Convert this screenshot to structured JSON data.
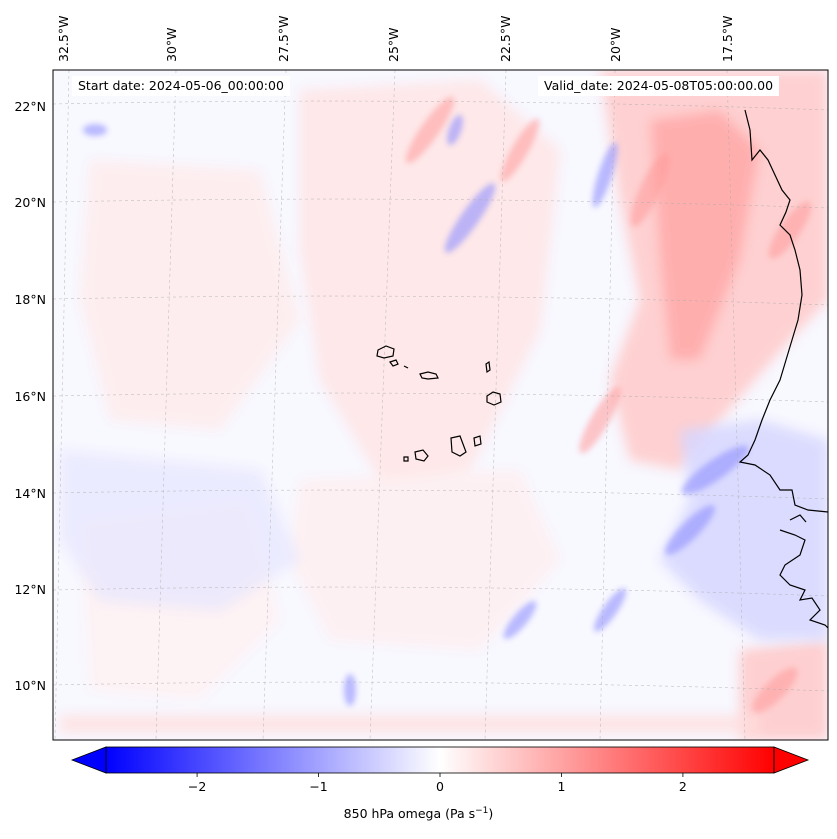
{
  "map": {
    "start_date_label": "Start date: 2024-05-06_00:00:00",
    "valid_date_label": "Valid_date: 2024-05-08T05:00:00.00",
    "variable": "850 hPa omega",
    "units_base": "Pa s",
    "units_exp": "−1",
    "lon_labels": [
      "32.5°W",
      "30°W",
      "27.5°W",
      "25°W",
      "22.5°W",
      "20°W",
      "17.5°W"
    ],
    "lat_labels": [
      "22°N",
      "20°N",
      "18°N",
      "16°N",
      "14°N",
      "12°N",
      "10°N"
    ]
  },
  "colorbar": {
    "min": -2.75,
    "max": 2.75,
    "tick_labels": [
      "−2",
      "−1",
      "0",
      "1",
      "2"
    ],
    "colors": {
      "negative": "#0000ff",
      "zero": "#ffffff",
      "positive": "#ff0000"
    }
  }
}
